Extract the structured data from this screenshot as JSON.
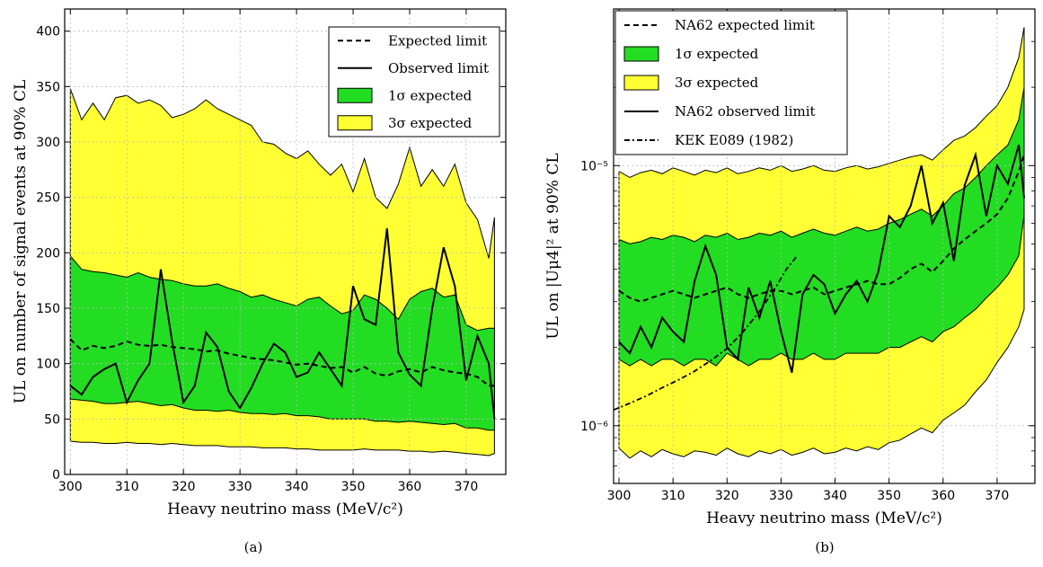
{
  "chart_data": [
    {
      "type": "line",
      "panel": "(a)",
      "xlabel": "Heavy neutrino mass (MeV/c²)",
      "ylabel": "UL on number of signal events at 90% CL",
      "xlim": [
        299,
        377
      ],
      "ylim": [
        0,
        420
      ],
      "yscale": "linear",
      "x_ticks": [
        300,
        310,
        320,
        330,
        340,
        350,
        360,
        370
      ],
      "y_ticks": [
        0,
        50,
        100,
        150,
        200,
        250,
        300,
        350,
        400
      ],
      "grid": true,
      "legend_position": "top-right",
      "legend": [
        "Expected limit",
        "Observed limit",
        "1σ expected",
        "3σ expected"
      ],
      "x": [
        300,
        302,
        304,
        306,
        308,
        310,
        312,
        314,
        316,
        318,
        320,
        322,
        324,
        326,
        328,
        330,
        332,
        334,
        336,
        338,
        340,
        342,
        344,
        346,
        348,
        350,
        352,
        354,
        356,
        358,
        360,
        362,
        364,
        366,
        368,
        370,
        372,
        374,
        375
      ],
      "expected": [
        122,
        112,
        116,
        114,
        116,
        120,
        117,
        116,
        117,
        115,
        114,
        113,
        111,
        112,
        109,
        107,
        105,
        104,
        103,
        101,
        99,
        100,
        98,
        96,
        97,
        92,
        97,
        91,
        89,
        93,
        95,
        92,
        97,
        94,
        92,
        91,
        88,
        80,
        80
      ],
      "observed": [
        80,
        72,
        88,
        95,
        100,
        65,
        85,
        100,
        185,
        120,
        65,
        80,
        128,
        115,
        75,
        60,
        78,
        100,
        118,
        110,
        88,
        92,
        110,
        95,
        80,
        170,
        140,
        135,
        222,
        110,
        90,
        80,
        150,
        205,
        170,
        85,
        125,
        100,
        50
      ],
      "sigma1_upper": [
        197,
        185,
        183,
        182,
        180,
        178,
        182,
        178,
        176,
        175,
        172,
        170,
        170,
        172,
        168,
        165,
        160,
        162,
        158,
        155,
        152,
        158,
        160,
        152,
        145,
        148,
        162,
        158,
        150,
        140,
        158,
        165,
        168,
        160,
        162,
        135,
        130,
        132,
        132
      ],
      "sigma1_lower": [
        68,
        67,
        66,
        64,
        64,
        65,
        66,
        64,
        62,
        63,
        60,
        58,
        58,
        57,
        58,
        56,
        55,
        55,
        54,
        55,
        53,
        53,
        52,
        50,
        50,
        50,
        50,
        48,
        48,
        47,
        48,
        47,
        46,
        45,
        46,
        42,
        42,
        40,
        40
      ],
      "sigma3_upper": [
        348,
        320,
        335,
        320,
        340,
        342,
        335,
        338,
        333,
        322,
        325,
        330,
        338,
        330,
        325,
        320,
        315,
        300,
        298,
        290,
        285,
        292,
        280,
        270,
        280,
        255,
        285,
        250,
        240,
        262,
        295,
        260,
        275,
        260,
        280,
        245,
        230,
        195,
        232
      ],
      "sigma3_lower": [
        30,
        29,
        29,
        28,
        28,
        29,
        28,
        28,
        27,
        28,
        27,
        26,
        26,
        26,
        25,
        25,
        25,
        24,
        24,
        24,
        23,
        23,
        22,
        22,
        22,
        22,
        23,
        22,
        22,
        22,
        21,
        21,
        20,
        21,
        20,
        19,
        18,
        17,
        19
      ]
    },
    {
      "type": "line",
      "panel": "(b)",
      "xlabel": "Heavy neutrino mass (MeV/c²)",
      "ylabel": "UL on |Uμ4|² at 90% CL",
      "xlim": [
        299,
        377
      ],
      "ylim": [
        6e-07,
        4e-05
      ],
      "yscale": "log",
      "x_ticks": [
        300,
        310,
        320,
        330,
        340,
        350,
        360,
        370
      ],
      "y_ticks": [
        "10⁻⁶",
        "10⁻⁵"
      ],
      "grid": true,
      "legend_position": "top-left",
      "legend": [
        "NA62 expected limit",
        "1σ expected",
        "3σ expected",
        "NA62 observed limit",
        "KEK E089 (1982)"
      ],
      "x": [
        300,
        302,
        304,
        306,
        308,
        310,
        312,
        314,
        316,
        318,
        320,
        322,
        324,
        326,
        328,
        330,
        332,
        334,
        336,
        338,
        340,
        342,
        344,
        346,
        348,
        350,
        352,
        354,
        356,
        358,
        360,
        362,
        364,
        366,
        368,
        370,
        372,
        374,
        375
      ],
      "expected": [
        3.3e-06,
        3.1e-06,
        3e-06,
        3.1e-06,
        3.2e-06,
        3.3e-06,
        3.2e-06,
        3.1e-06,
        3.2e-06,
        3.3e-06,
        3.4e-06,
        3.2e-06,
        3.1e-06,
        3.2e-06,
        3.3e-06,
        3.3e-06,
        3.2e-06,
        3.3e-06,
        3.4e-06,
        3.2e-06,
        3.3e-06,
        3.4e-06,
        3.5e-06,
        3.6e-06,
        3.5e-06,
        3.5e-06,
        3.7e-06,
        4e-06,
        4.2e-06,
        3.9e-06,
        4.3e-06,
        4.8e-06,
        5.2e-06,
        5.6e-06,
        6e-06,
        6.5e-06,
        7.5e-06,
        9.5e-06,
        1.1e-05
      ],
      "observed": [
        2.1e-06,
        1.9e-06,
        2.4e-06,
        2e-06,
        2.6e-06,
        2.3e-06,
        2.1e-06,
        3.6e-06,
        4.9e-06,
        3.8e-06,
        2e-06,
        1.8e-06,
        3.4e-06,
        2.6e-06,
        3.6e-06,
        2.3e-06,
        1.6e-06,
        3.2e-06,
        3.8e-06,
        3.5e-06,
        2.7e-06,
        3.2e-06,
        3.6e-06,
        3e-06,
        3.9e-06,
        6.4e-06,
        5.8e-06,
        7e-06,
        1e-05,
        6e-06,
        7.2e-06,
        4.3e-06,
        8.4e-06,
        1.1e-05,
        6.4e-06,
        1e-05,
        8.5e-06,
        1.2e-05,
        7.5e-06
      ],
      "sigma1_upper": [
        5.2e-06,
        5e-06,
        5.1e-06,
        5.3e-06,
        5.2e-06,
        5.4e-06,
        5.3e-06,
        5.1e-06,
        5.4e-06,
        5.3e-06,
        5.5e-06,
        5.2e-06,
        5.3e-06,
        5.5e-06,
        5.4e-06,
        5.6e-06,
        5.3e-06,
        5.5e-06,
        5.7e-06,
        5.5e-06,
        5.4e-06,
        5.6e-06,
        5.8e-06,
        5.6e-06,
        5.7e-06,
        6e-06,
        6.2e-06,
        6.5e-06,
        6.8e-06,
        6.4e-06,
        7e-06,
        7.8e-06,
        8.2e-06,
        9e-06,
        1e-05,
        1.1e-05,
        1.2e-05,
        1.5e-05,
        2e-05
      ],
      "sigma1_lower": [
        1.8e-06,
        1.7e-06,
        1.8e-06,
        1.7e-06,
        1.8e-06,
        1.8e-06,
        1.7e-06,
        1.8e-06,
        1.8e-06,
        1.7e-06,
        1.9e-06,
        1.8e-06,
        1.7e-06,
        1.8e-06,
        1.8e-06,
        1.9e-06,
        1.8e-06,
        1.8e-06,
        1.9e-06,
        1.8e-06,
        1.8e-06,
        1.9e-06,
        1.9e-06,
        1.9e-06,
        1.9e-06,
        2e-06,
        2e-06,
        2.1e-06,
        2.2e-06,
        2.1e-06,
        2.3e-06,
        2.4e-06,
        2.6e-06,
        2.8e-06,
        3.1e-06,
        3.4e-06,
        3.8e-06,
        4.5e-06,
        6.5e-06
      ],
      "sigma3_upper": [
        9.5e-06,
        9e-06,
        9.4e-06,
        9.6e-06,
        9.3e-06,
        9.8e-06,
        9.5e-06,
        9.2e-06,
        9.6e-06,
        9.4e-06,
        9.8e-06,
        9.3e-06,
        9.5e-06,
        9.8e-06,
        9.6e-06,
        1e-05,
        9.5e-06,
        9.7e-06,
        1e-05,
        9.6e-06,
        9.5e-06,
        9.8e-06,
        1e-05,
        9.7e-06,
        9.9e-06,
        1.02e-05,
        1.05e-05,
        1.08e-05,
        1.1e-05,
        1.05e-05,
        1.15e-05,
        1.25e-05,
        1.3e-05,
        1.4e-05,
        1.55e-05,
        1.7e-05,
        2e-05,
        2.6e-05,
        3.4e-05
      ],
      "sigma3_lower": [
        8.2e-07,
        7.5e-07,
        8e-07,
        7.6e-07,
        8.1e-07,
        7.8e-07,
        7.6e-07,
        8e-07,
        7.9e-07,
        7.7e-07,
        8.2e-07,
        7.8e-07,
        7.6e-07,
        8e-07,
        7.8e-07,
        8.1e-07,
        7.7e-07,
        7.9e-07,
        8.2e-07,
        7.8e-07,
        7.9e-07,
        8.2e-07,
        8e-07,
        8.3e-07,
        8.1e-07,
        8.6e-07,
        8.8e-07,
        9.3e-07,
        9.8e-07,
        9.4e-07,
        1.05e-06,
        1.12e-06,
        1.2e-06,
        1.35e-06,
        1.5e-06,
        1.75e-06,
        2e-06,
        2.4e-06,
        2.8e-06
      ],
      "kek_x": [
        299,
        302,
        305,
        308,
        311,
        314,
        317,
        320,
        323,
        326,
        329,
        331,
        333
      ],
      "kek_y": [
        1.15e-06,
        1.22e-06,
        1.3e-06,
        1.4e-06,
        1.5e-06,
        1.62e-06,
        1.78e-06,
        1.98e-06,
        2.3e-06,
        2.75e-06,
        3.4e-06,
        4e-06,
        4.5e-06
      ]
    }
  ],
  "captions": [
    "(a)",
    "(b)"
  ],
  "colors": {
    "sigma1": "#22dd22",
    "sigma3": "#ffff33",
    "edge": "#000000",
    "grid": "#bbbbbb"
  }
}
